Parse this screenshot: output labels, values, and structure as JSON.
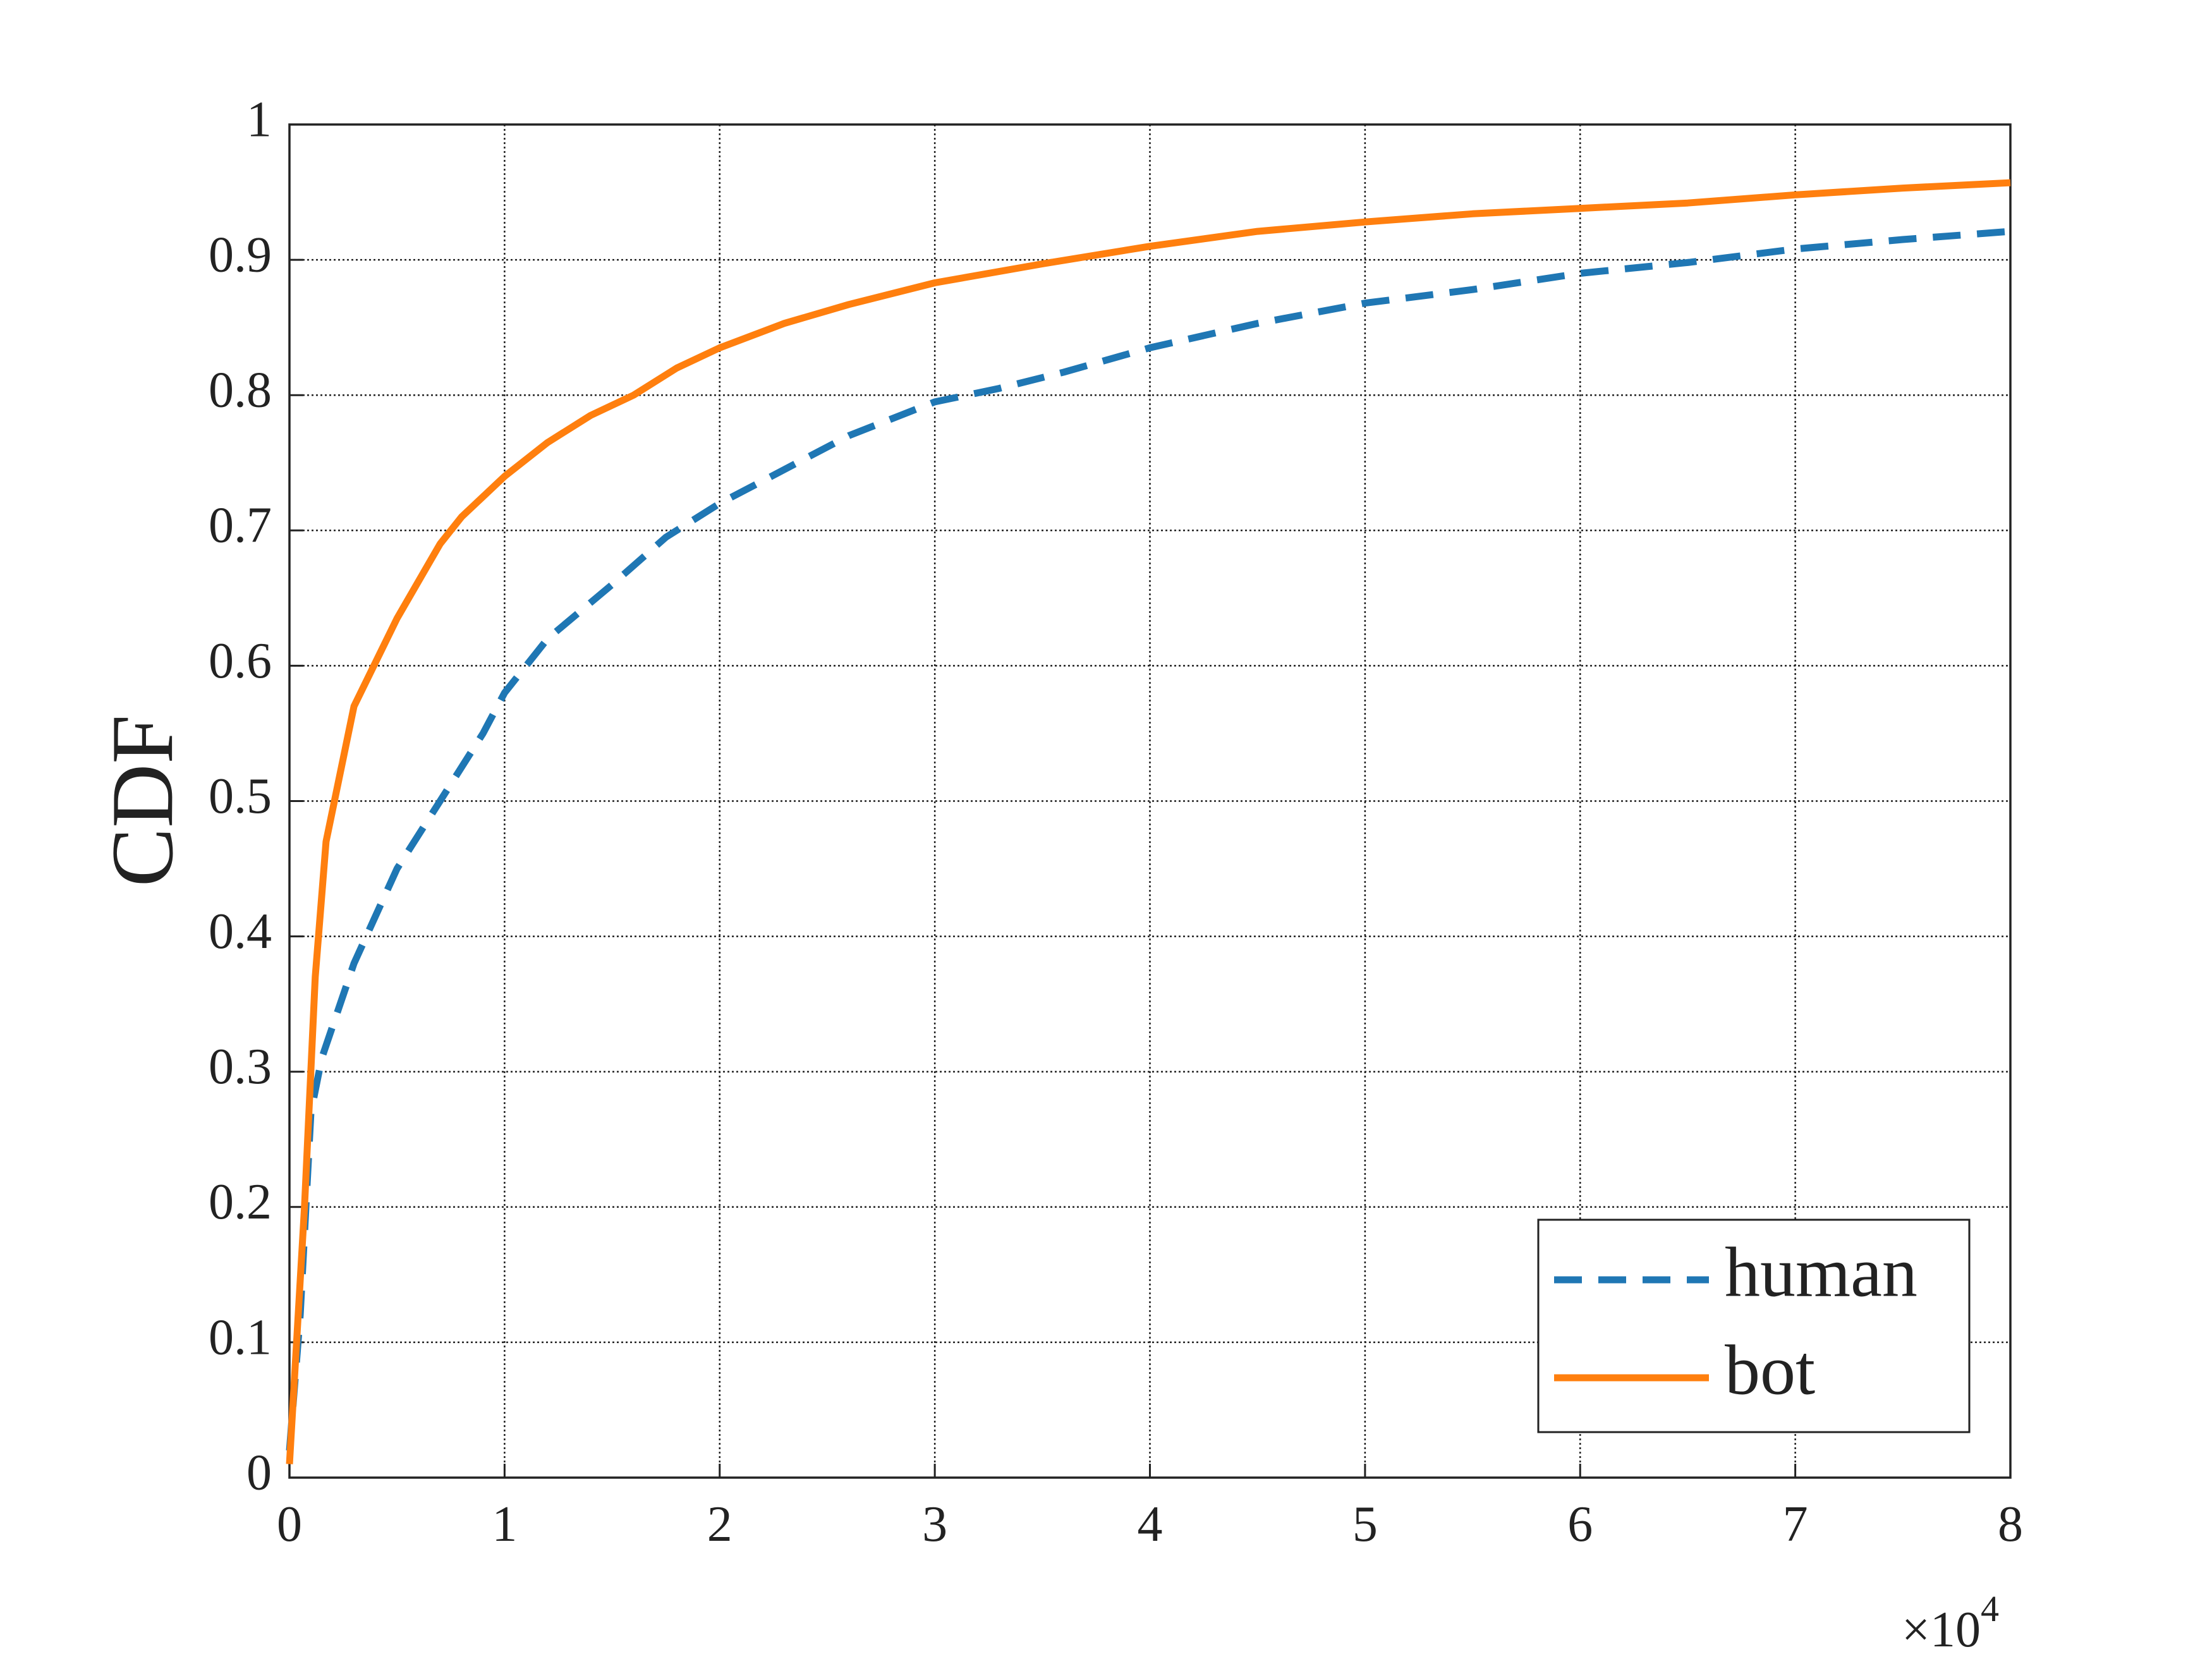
{
  "chart_data": {
    "type": "line",
    "y_label": "CDF",
    "x_scale_label": {
      "base": "×10",
      "exponent": "4"
    },
    "xlim": [
      0,
      80000
    ],
    "ylim": [
      0,
      1
    ],
    "xticks": [
      {
        "value": 0,
        "label": "0"
      },
      {
        "value": 10000,
        "label": "1"
      },
      {
        "value": 20000,
        "label": "2"
      },
      {
        "value": 30000,
        "label": "3"
      },
      {
        "value": 40000,
        "label": "4"
      },
      {
        "value": 50000,
        "label": "5"
      },
      {
        "value": 60000,
        "label": "6"
      },
      {
        "value": 70000,
        "label": "7"
      },
      {
        "value": 80000,
        "label": "8"
      }
    ],
    "yticks": [
      0,
      0.1,
      0.2,
      0.3,
      0.4,
      0.5,
      0.6,
      0.7,
      0.8,
      0.9,
      1
    ],
    "grid": true,
    "legend": "lower right",
    "series": [
      {
        "name": "human",
        "color": "#1f77b4",
        "dash": true,
        "x": [
          0,
          500,
          1000,
          1500,
          3000,
          5000,
          7000,
          9000,
          10000,
          12000,
          15000,
          17500,
          20000,
          23000,
          26000,
          30000,
          33000,
          36000,
          40000,
          45000,
          50000,
          55000,
          60000,
          65000,
          70000,
          75000,
          80000
        ],
        "values": [
          0.02,
          0.12,
          0.27,
          0.31,
          0.38,
          0.45,
          0.5,
          0.55,
          0.58,
          0.62,
          0.66,
          0.695,
          0.72,
          0.745,
          0.77,
          0.795,
          0.805,
          0.817,
          0.835,
          0.853,
          0.868,
          0.878,
          0.89,
          0.898,
          0.908,
          0.915,
          0.921
        ]
      },
      {
        "name": "bot",
        "color": "#ff7f0e",
        "dash": false,
        "x": [
          0,
          700,
          1200,
          1700,
          3000,
          5000,
          7000,
          8000,
          10000,
          12000,
          14000,
          16000,
          18000,
          20000,
          23000,
          26000,
          30000,
          35000,
          40000,
          45000,
          50000,
          55000,
          60000,
          65000,
          70000,
          75000,
          80000
        ],
        "values": [
          0.01,
          0.2,
          0.37,
          0.47,
          0.57,
          0.635,
          0.69,
          0.71,
          0.74,
          0.765,
          0.785,
          0.8,
          0.82,
          0.835,
          0.853,
          0.867,
          0.883,
          0.897,
          0.91,
          0.921,
          0.928,
          0.934,
          0.938,
          0.942,
          0.948,
          0.953,
          0.957
        ]
      }
    ]
  }
}
